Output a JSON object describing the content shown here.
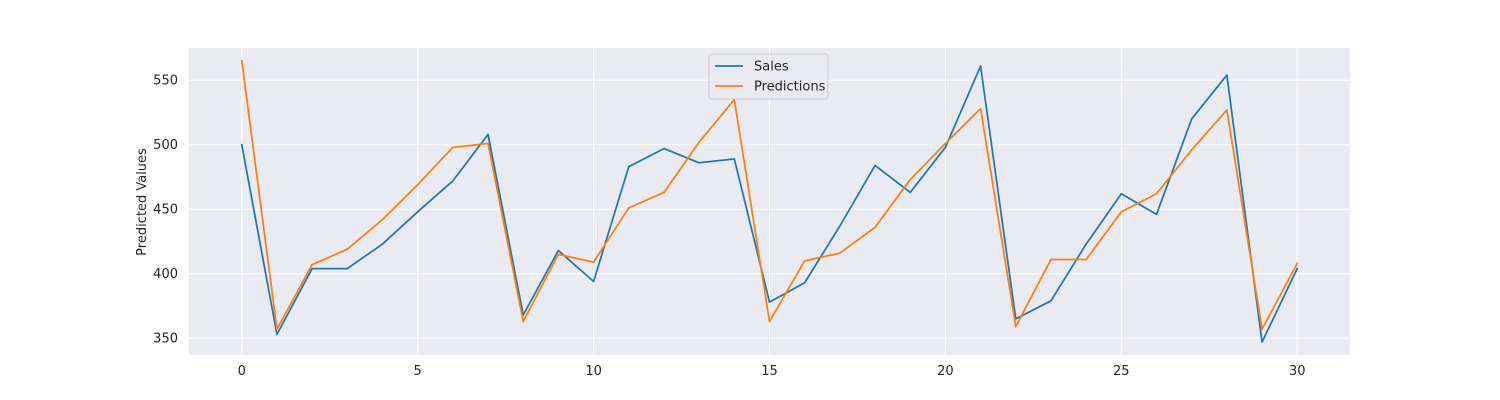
{
  "chart_data": {
    "type": "line",
    "title": "",
    "xlabel": "",
    "ylabel": "Predicted Values",
    "xlim": [
      -1.5,
      31.5
    ],
    "ylim": [
      337,
      575
    ],
    "xticks": [
      0,
      5,
      10,
      15,
      20,
      25,
      30
    ],
    "yticks": [
      350,
      400,
      450,
      500,
      550
    ],
    "grid": true,
    "legend_position": "top-center",
    "x": [
      0,
      1,
      2,
      3,
      4,
      5,
      6,
      7,
      8,
      9,
      10,
      11,
      12,
      13,
      14,
      15,
      16,
      17,
      18,
      19,
      20,
      21,
      22,
      23,
      24,
      25,
      26,
      27,
      28,
      29,
      30
    ],
    "series": [
      {
        "name": "Sales",
        "color": "#1f77b4",
        "values": [
          500,
          353,
          404,
          404,
          423,
          448,
          472,
          508,
          368,
          418,
          394,
          483,
          497,
          486,
          489,
          378,
          393,
          437,
          484,
          463,
          498,
          561,
          365,
          379,
          423,
          462,
          446,
          520,
          554,
          347,
          404
        ]
      },
      {
        "name": "Predictions",
        "color": "#ff7f0e",
        "values": [
          565,
          357,
          407,
          419,
          442,
          469,
          498,
          501,
          363,
          415,
          409,
          451,
          463,
          502,
          535,
          363,
          410,
          416,
          436,
          473,
          501,
          528,
          359,
          411,
          411,
          448,
          462,
          496,
          527,
          357,
          408
        ]
      }
    ]
  }
}
